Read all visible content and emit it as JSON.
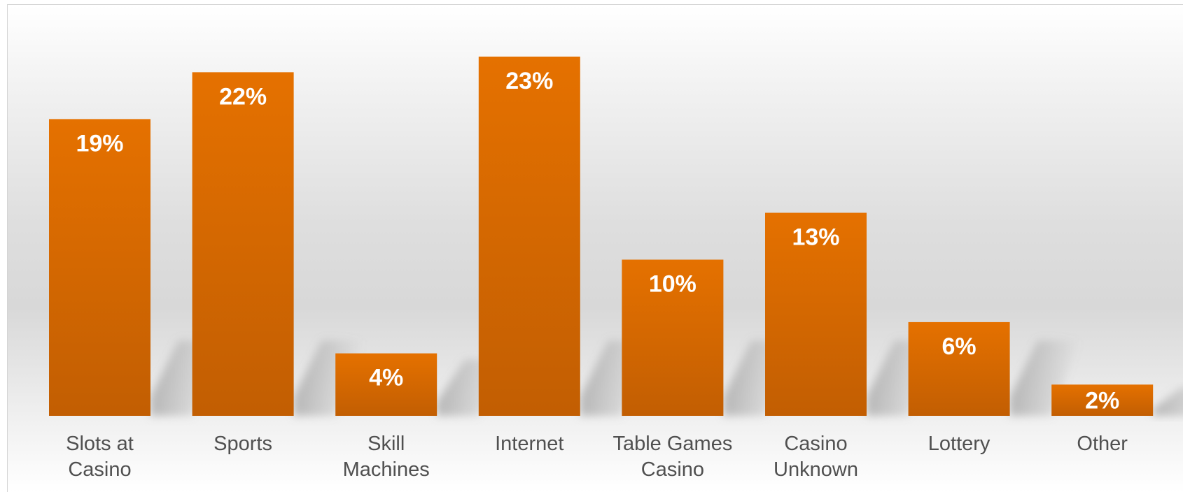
{
  "chart_data": {
    "type": "bar",
    "categories": [
      [
        "Slots at",
        "Casino"
      ],
      [
        "Sports"
      ],
      [
        "Skill",
        "Machines"
      ],
      [
        "Internet"
      ],
      [
        "Table Games",
        "Casino"
      ],
      [
        "Casino",
        "Unknown"
      ],
      [
        "Lottery"
      ],
      [
        "Other"
      ]
    ],
    "values": [
      19,
      22,
      4,
      23,
      10,
      13,
      6,
      2
    ],
    "data_labels": [
      "19%",
      "22%",
      "4%",
      "23%",
      "10%",
      "13%",
      "6%",
      "2%"
    ],
    "unit": "%",
    "ylim": [
      0,
      23
    ],
    "grid": false,
    "legend": "none",
    "colors": {
      "bar_top": "#e57100",
      "bar_bottom": "#c25e02",
      "value_label": "#ffffff",
      "category_label": "#505050"
    }
  }
}
